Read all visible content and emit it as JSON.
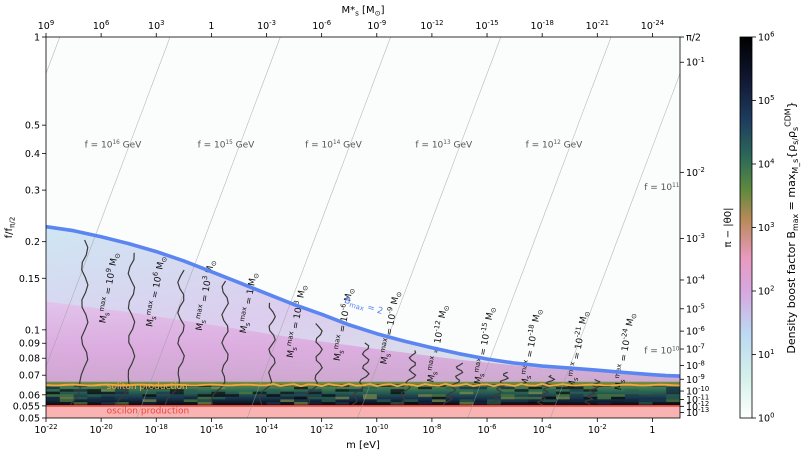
{
  "chart_data": {
    "type": "heatmap",
    "x_axis": {
      "label": "m [eV]",
      "scale": "log",
      "range": [
        1e-22,
        10
      ],
      "tick_labels": [
        "10^-22",
        "10^-20",
        "10^-18",
        "10^-16",
        "10^-14",
        "10^-12",
        "10^-10",
        "10^-8",
        "10^-6",
        "10^-4",
        "10^-2",
        "1"
      ]
    },
    "top_axis": {
      "label": "M*_s [M_⊙]",
      "tick_labels": [
        "10^9",
        "10^6",
        "10^3",
        "1",
        "10^-3",
        "10^-6",
        "10^-9",
        "10^-12",
        "10^-15",
        "10^-18",
        "10^-21",
        "10^-24"
      ]
    },
    "y_axis": {
      "label": "f/f_π/2",
      "scale": "log",
      "range": [
        0.05,
        1
      ],
      "tick_labels": [
        "0.05",
        "0.055",
        "0.06",
        "0.07",
        "0.08",
        "0.09",
        "0.1",
        "0.15",
        "0.2",
        "0.3",
        "0.4",
        "0.5",
        "1"
      ]
    },
    "right_axis": {
      "label": "π − |θ0|",
      "tick_labels": [
        "π/2",
        "10^-1",
        "10^-2",
        "10^-3",
        "10^-4",
        "10^-5",
        "10^-6",
        "10^-7",
        "10^-8",
        "10^-9",
        "10^-10",
        "10^-11",
        "10^-12",
        "10^-13"
      ]
    },
    "colorbar": {
      "label": "Density boost factor B_max = max_{M_s}{ρ_s/ρ_s^CDM}",
      "scale": "log",
      "range": [
        1,
        1000000
      ],
      "tick_labels": [
        "10^0",
        "10^1",
        "10^2",
        "10^3",
        "10^4",
        "10^5",
        "10^6"
      ]
    },
    "f_contours": [
      "f = 10^16 GeV",
      "f = 10^15 GeV",
      "f = 10^14 GeV",
      "f = 10^13 GeV",
      "f = 10^12 GeV",
      "f = 10^11 GeV",
      "f = 10^10 GeV"
    ],
    "mass_contours": [
      "M_s^max = 10^9 M_⊙",
      "M_s^max = 10^6 M_⊙",
      "M_s^max = 10^3 M_⊙",
      "M_s^max = 1 M_⊙",
      "M_s^max = 10^-3 M_⊙",
      "M_s^max = 10^-6 M_⊙",
      "M_s^max = 10^-9 M_⊙",
      "M_s^max = 10^-12 M_⊙",
      "M_s^max = 10^-15 M_⊙",
      "M_s^max = 10^-18 M_⊙",
      "M_s^max = 10^-21 M_⊙",
      "M_s^max = 10^-24 M_⊙"
    ],
    "bmax_contour_label": "B_max = 2",
    "regions": {
      "soliton": "soliton production",
      "oscilon": "oscilon production"
    },
    "colors": {
      "bmax_line": "#5b85f0",
      "soliton_line": "#f2a93b",
      "oscilon_fill": "#f9b3b3",
      "oscilon_line": "#e8463c"
    }
  }
}
